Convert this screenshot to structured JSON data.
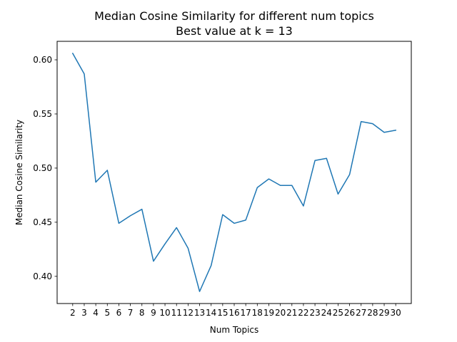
{
  "chart_data": {
    "type": "line",
    "title": "Median Cosine Similarity for different num topics",
    "subtitle": "Best value at k = 13",
    "xlabel": "Num Topics",
    "ylabel": "Median Cosine Similarity",
    "x": [
      2,
      3,
      4,
      5,
      6,
      7,
      8,
      9,
      10,
      11,
      12,
      13,
      14,
      15,
      16,
      17,
      18,
      19,
      20,
      21,
      22,
      23,
      24,
      25,
      26,
      27,
      28,
      29,
      30
    ],
    "series": [
      {
        "values": [
          0.606,
          0.587,
          0.487,
          0.498,
          0.449,
          0.456,
          0.462,
          0.414,
          0.43,
          0.445,
          0.426,
          0.386,
          0.41,
          0.457,
          0.449,
          0.452,
          0.482,
          0.49,
          0.484,
          0.484,
          0.465,
          0.507,
          0.509,
          0.476,
          0.494,
          0.543,
          0.541,
          0.533,
          0.535
        ]
      }
    ],
    "xlim": [
      0.65,
      31.35
    ],
    "ylim": [
      0.3749,
      0.6171
    ],
    "yticks": [
      0.4,
      0.45,
      0.5,
      0.55,
      0.6
    ],
    "ytick_labels": [
      "0.40",
      "0.45",
      "0.50",
      "0.55",
      "0.60"
    ],
    "line_color": "#1f77b4",
    "grid": false,
    "legend": false
  }
}
